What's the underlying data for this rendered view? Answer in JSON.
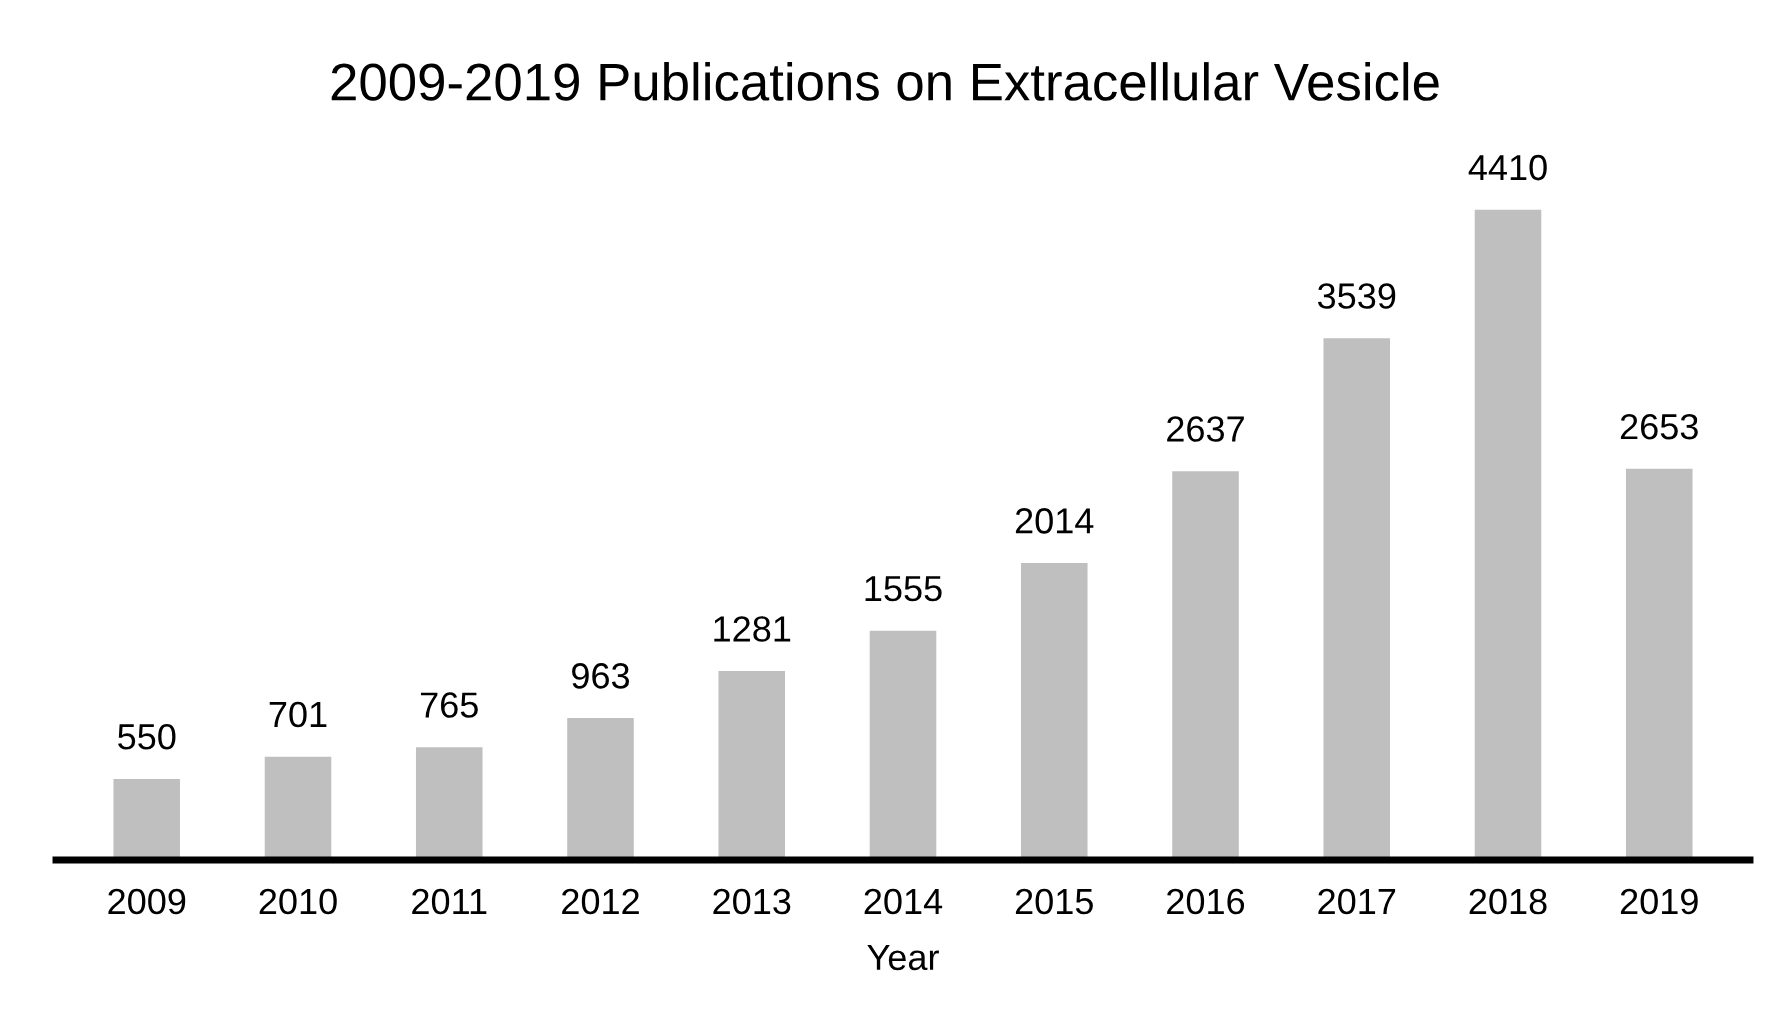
{
  "chart_data": {
    "type": "bar",
    "title": "2009-2019 Publications on Extracellular Vesicle",
    "xlabel": "Year",
    "categories": [
      "2009",
      "2010",
      "2011",
      "2012",
      "2013",
      "2014",
      "2015",
      "2016",
      "2017",
      "2018",
      "2019"
    ],
    "values": [
      550,
      701,
      765,
      963,
      1281,
      1555,
      2014,
      2637,
      3539,
      4410,
      2653
    ],
    "color": "#bfbfbf",
    "data_labels": true,
    "grid": false,
    "legend": false
  }
}
